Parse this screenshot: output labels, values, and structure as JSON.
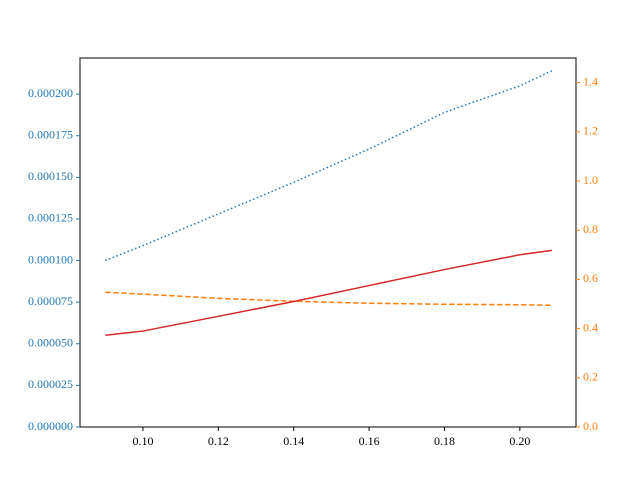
{
  "chart_data": {
    "type": "line",
    "x": [
      0.09,
      0.1,
      0.12,
      0.14,
      0.16,
      0.18,
      0.2,
      0.2085
    ],
    "xlim": [
      0.0833,
      0.2149
    ],
    "xticks": [
      {
        "value": 0.1,
        "label": "0.10"
      },
      {
        "value": 0.12,
        "label": "0.12"
      },
      {
        "value": 0.14,
        "label": "0.14"
      },
      {
        "value": 0.16,
        "label": "0.16"
      },
      {
        "value": 0.18,
        "label": "0.18"
      },
      {
        "value": 0.2,
        "label": "0.20"
      }
    ],
    "ylim": [
      0,
      0.0002217
    ],
    "yticks": [
      {
        "value": 0,
        "label": "0.000000"
      },
      {
        "value": 2.5e-05,
        "label": "0.000025"
      },
      {
        "value": 5e-05,
        "label": "0.000050"
      },
      {
        "value": 7.5e-05,
        "label": "0.000075"
      },
      {
        "value": 0.0001,
        "label": "0.000100"
      },
      {
        "value": 0.000125,
        "label": "0.000125"
      },
      {
        "value": 0.00015,
        "label": "0.000150"
      },
      {
        "value": 0.000175,
        "label": "0.000175"
      },
      {
        "value": 0.0002,
        "label": "0.000200"
      }
    ],
    "ycolor": "#1f77b4",
    "y2lim": [
      0,
      1.5
    ],
    "y2ticks": [
      {
        "value": 0,
        "label": "0.0"
      },
      0.2,
      0.4,
      0.6,
      0.8,
      {
        "value": 1,
        "label": "1.0"
      },
      1.2,
      1.4
    ],
    "y2color": "#ff7f0e",
    "series": [
      {
        "color": "#1f77b4",
        "style": "dotted",
        "values": [
          0.0001,
          0.000109,
          0.000128,
          0.000147,
          0.000167,
          0.000189,
          0.000205,
          0.000214
        ]
      },
      {
        "color": "#ff7f0e",
        "style": "dashed",
        "axis": "y2",
        "values": [
          0.548,
          0.54,
          0.523,
          0.511,
          0.503,
          0.499,
          0.497,
          0.495
        ]
      },
      {
        "color": "#d62728",
        "style": "solid",
        "axis": "y2",
        "values": [
          0.373,
          0.39,
          0.45,
          0.51,
          0.575,
          0.64,
          0.7,
          0.718
        ]
      }
    ]
  }
}
